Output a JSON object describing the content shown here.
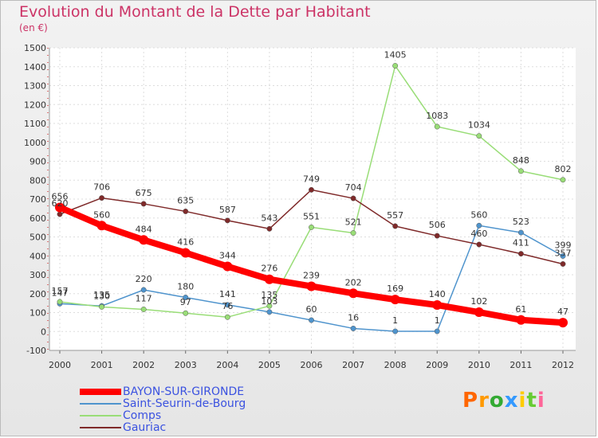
{
  "header": {
    "title": "Evolution du Montant de la Dette par Habitant",
    "subtitle": "(en €)"
  },
  "brand": {
    "logo_text": "Proxiti",
    "colors": [
      "#ff6600",
      "#ff9900",
      "#33aa33",
      "#3399ff",
      "#ffcc00",
      "#66cc33",
      "#ff6699"
    ]
  },
  "chart_data": {
    "type": "line",
    "title": "Evolution du Montant de la Dette par Habitant",
    "subtitle": "(en €)",
    "xlabel": "",
    "ylabel": "",
    "x": [
      "2000",
      "2001",
      "2002",
      "2003",
      "2004",
      "2005",
      "2006",
      "2007",
      "2008",
      "2009",
      "2010",
      "2011",
      "2012"
    ],
    "ylim": [
      -100,
      1500
    ],
    "yticks": [
      -100,
      0,
      100,
      200,
      300,
      400,
      500,
      600,
      700,
      800,
      900,
      1000,
      1100,
      1200,
      1300,
      1400,
      1500
    ],
    "grid": true,
    "legend_position": "bottom-left",
    "series": [
      {
        "name": "BAYON-SUR-GIRONDE",
        "color": "#ff0000",
        "emphasis": true,
        "values": [
          656,
          560,
          484,
          416,
          344,
          276,
          239,
          202,
          169,
          140,
          102,
          61,
          47
        ]
      },
      {
        "name": "Saint-Seurin-de-Bourg",
        "color": "#4f94cd",
        "emphasis": false,
        "values": [
          147,
          135,
          220,
          180,
          141,
          103,
          60,
          16,
          1,
          1,
          560,
          523,
          399
        ]
      },
      {
        "name": "Comps",
        "color": "#99dd77",
        "emphasis": false,
        "values": [
          157,
          130,
          117,
          97,
          76,
          135,
          551,
          521,
          1405,
          1083,
          1034,
          848,
          802
        ]
      },
      {
        "name": "Gauriac",
        "color": "#7f2a2a",
        "emphasis": false,
        "values": [
          620,
          706,
          675,
          635,
          587,
          543,
          749,
          704,
          557,
          506,
          460,
          411,
          357
        ]
      }
    ]
  }
}
